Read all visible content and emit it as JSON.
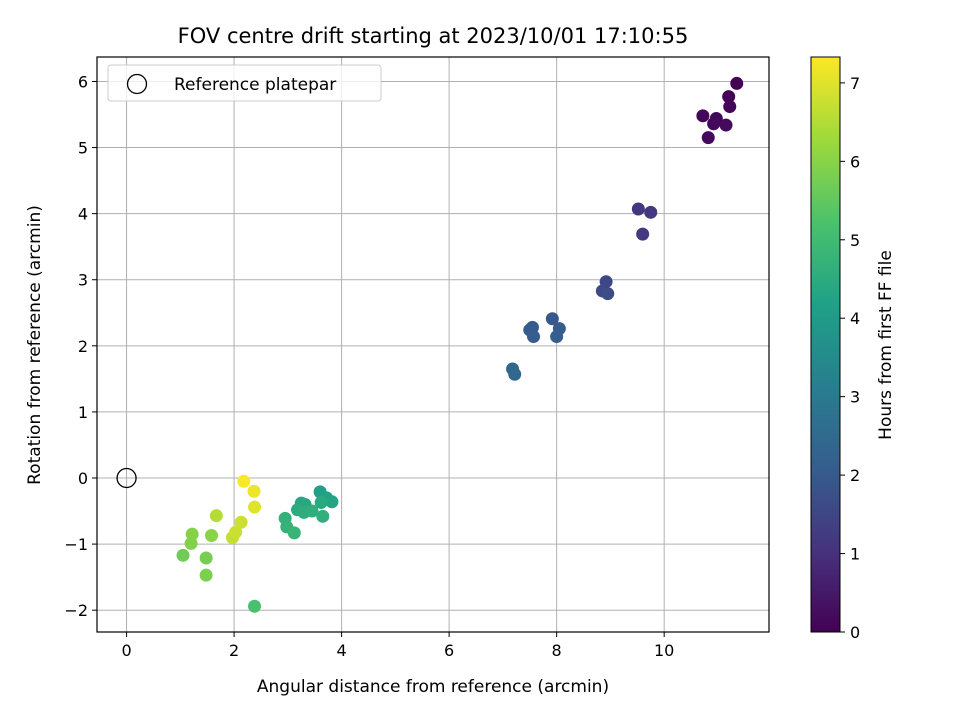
{
  "chart_data": {
    "type": "scatter",
    "title": "FOV centre drift starting at 2023/10/01 17:10:55",
    "xlabel": "Angular distance from reference (arcmin)",
    "ylabel": "Rotation from reference (arcmin)",
    "xlim": [
      -0.55,
      11.95
    ],
    "ylim": [
      -2.33,
      6.37
    ],
    "xticks": [
      "0",
      "2",
      "4",
      "6",
      "8",
      "10"
    ],
    "yticks": [
      "−2",
      "−1",
      "0",
      "1",
      "2",
      "3",
      "4",
      "5",
      "6"
    ],
    "grid": true,
    "legend": {
      "placement": "top-left",
      "entries": [
        "Reference platepar"
      ]
    },
    "reference_point": {
      "x": 0,
      "y": 0
    },
    "colorbar": {
      "label": "Hours from first FF file",
      "range": [
        0,
        7.33
      ],
      "ticks": [
        "0",
        "1",
        "2",
        "3",
        "4",
        "5",
        "6",
        "7"
      ],
      "colormap": "viridis"
    },
    "points": [
      {
        "x": 11.35,
        "y": 5.97,
        "t": 0.0
      },
      {
        "x": 11.2,
        "y": 5.77,
        "t": 0.05
      },
      {
        "x": 11.22,
        "y": 5.62,
        "t": 0.1
      },
      {
        "x": 10.72,
        "y": 5.48,
        "t": 0.12
      },
      {
        "x": 10.97,
        "y": 5.44,
        "t": 0.15
      },
      {
        "x": 10.92,
        "y": 5.36,
        "t": 0.17
      },
      {
        "x": 11.15,
        "y": 5.34,
        "t": 0.2
      },
      {
        "x": 10.82,
        "y": 5.15,
        "t": 0.22
      },
      {
        "x": 9.52,
        "y": 4.07,
        "t": 1.15
      },
      {
        "x": 9.75,
        "y": 4.02,
        "t": 1.2
      },
      {
        "x": 9.6,
        "y": 3.69,
        "t": 1.25
      },
      {
        "x": 8.92,
        "y": 2.97,
        "t": 1.6
      },
      {
        "x": 8.85,
        "y": 2.83,
        "t": 1.65
      },
      {
        "x": 8.95,
        "y": 2.79,
        "t": 1.7
      },
      {
        "x": 7.92,
        "y": 2.41,
        "t": 2.0
      },
      {
        "x": 7.55,
        "y": 2.28,
        "t": 2.05
      },
      {
        "x": 8.05,
        "y": 2.26,
        "t": 2.08
      },
      {
        "x": 7.5,
        "y": 2.24,
        "t": 2.1
      },
      {
        "x": 7.57,
        "y": 2.14,
        "t": 2.12
      },
      {
        "x": 8.0,
        "y": 2.14,
        "t": 2.15
      },
      {
        "x": 7.18,
        "y": 1.65,
        "t": 2.4
      },
      {
        "x": 7.22,
        "y": 1.57,
        "t": 2.45
      },
      {
        "x": 3.6,
        "y": -0.21,
        "t": 4.2
      },
      {
        "x": 3.72,
        "y": -0.3,
        "t": 4.25
      },
      {
        "x": 3.82,
        "y": -0.36,
        "t": 4.3
      },
      {
        "x": 3.25,
        "y": -0.38,
        "t": 4.35
      },
      {
        "x": 3.32,
        "y": -0.4,
        "t": 4.4
      },
      {
        "x": 3.62,
        "y": -0.37,
        "t": 4.45
      },
      {
        "x": 3.18,
        "y": -0.48,
        "t": 4.5
      },
      {
        "x": 3.3,
        "y": -0.52,
        "t": 4.55
      },
      {
        "x": 3.45,
        "y": -0.5,
        "t": 4.6
      },
      {
        "x": 3.65,
        "y": -0.58,
        "t": 4.65
      },
      {
        "x": 2.95,
        "y": -0.61,
        "t": 4.7
      },
      {
        "x": 2.98,
        "y": -0.74,
        "t": 4.75
      },
      {
        "x": 3.12,
        "y": -0.83,
        "t": 4.8
      },
      {
        "x": 2.38,
        "y": -1.94,
        "t": 5.2
      },
      {
        "x": 1.05,
        "y": -1.17,
        "t": 5.7
      },
      {
        "x": 1.48,
        "y": -1.21,
        "t": 5.8
      },
      {
        "x": 1.48,
        "y": -1.47,
        "t": 5.85
      },
      {
        "x": 1.2,
        "y": -0.99,
        "t": 5.9
      },
      {
        "x": 1.22,
        "y": -0.85,
        "t": 5.95
      },
      {
        "x": 1.58,
        "y": -0.87,
        "t": 6.0
      },
      {
        "x": 1.67,
        "y": -0.57,
        "t": 6.5
      },
      {
        "x": 1.97,
        "y": -0.9,
        "t": 6.7
      },
      {
        "x": 2.03,
        "y": -0.82,
        "t": 6.75
      },
      {
        "x": 2.13,
        "y": -0.67,
        "t": 6.8
      },
      {
        "x": 2.38,
        "y": -0.44,
        "t": 7.0
      },
      {
        "x": 2.37,
        "y": -0.2,
        "t": 7.15
      },
      {
        "x": 2.18,
        "y": -0.05,
        "t": 7.3
      }
    ]
  }
}
